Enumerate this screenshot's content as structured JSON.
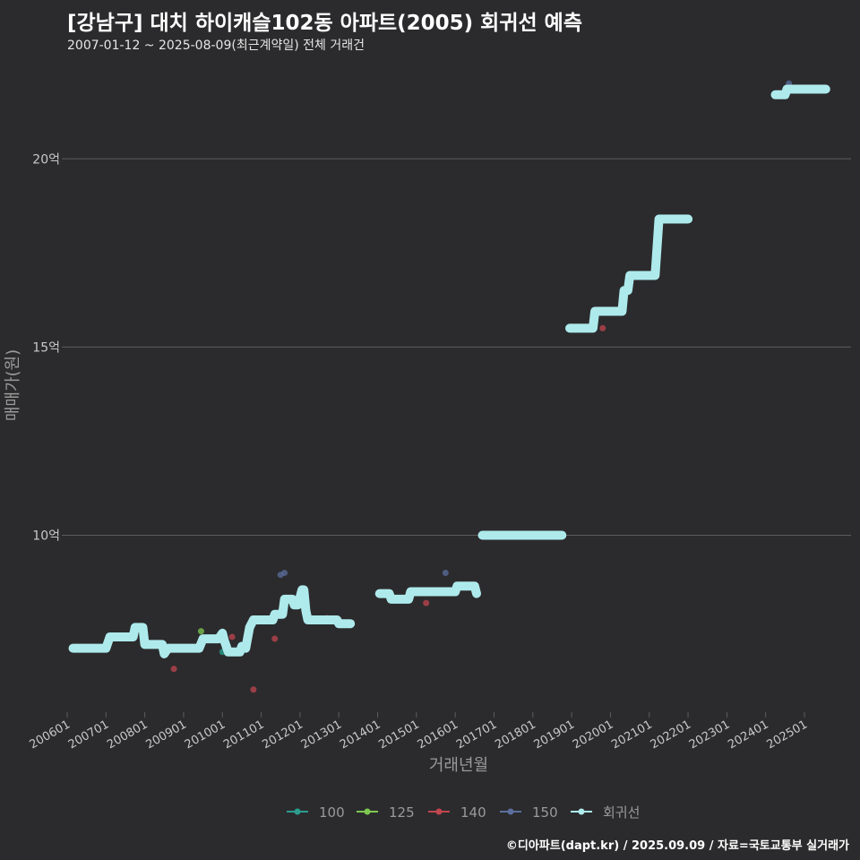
{
  "title": "[강남구] 대치 하이캐슬102동 아파트(2005) 회귀선 예측",
  "subtitle": "2007-01-12 ~ 2025-08-09(최근계약일) 전체 거래건",
  "footer": "©디아파트(dapt.kr) / 2025.09.09 / 자료=국토교통부 실거래가",
  "colors": {
    "background": "#2b2b2d",
    "grid": "#5c5c5f",
    "regression": "#aeeaec",
    "s100": "#2a9d8f",
    "s125": "#7ec850",
    "s140": "#c0464f",
    "s150": "#5b6e9c"
  },
  "chart_data": {
    "type": "scatter",
    "title": "[강남구] 대치 하이캐슬102동 아파트(2005) 회귀선 예측",
    "xlabel": "거래년월",
    "ylabel": "매매가(원)",
    "ylim": [
      5.3,
      22.6
    ],
    "xlim": [
      2006.0,
      2026.2
    ],
    "yticks": [
      {
        "value": 10,
        "label": "10억"
      },
      {
        "value": 15,
        "label": "15억"
      },
      {
        "value": 20,
        "label": "20억"
      }
    ],
    "xticks": [
      "200601",
      "200701",
      "200801",
      "200901",
      "201001",
      "201101",
      "201201",
      "201301",
      "201401",
      "201501",
      "201601",
      "201701",
      "201801",
      "201901",
      "202001",
      "202101",
      "202201",
      "202301",
      "202401",
      "202501"
    ],
    "legend": [
      "100",
      "125",
      "140",
      "150",
      "회귀선"
    ],
    "series": [
      {
        "name": "100",
        "points": [
          [
            2010.0,
            6.9
          ]
        ]
      },
      {
        "name": "125",
        "points": [
          [
            2009.45,
            7.45
          ]
        ]
      },
      {
        "name": "140",
        "points": [
          [
            2008.75,
            6.45
          ],
          [
            2010.25,
            7.3
          ],
          [
            2010.8,
            5.9
          ],
          [
            2011.35,
            7.25
          ],
          [
            2012.7,
            7.8
          ],
          [
            2013.0,
            7.75
          ],
          [
            2015.25,
            8.2
          ],
          [
            2019.8,
            15.5
          ],
          [
            2024.4,
            21.7
          ]
        ]
      },
      {
        "name": "150",
        "points": [
          [
            2011.5,
            8.95
          ],
          [
            2011.6,
            9.0
          ],
          [
            2013.05,
            7.7
          ],
          [
            2015.75,
            9.0
          ],
          [
            2024.6,
            22.0
          ]
        ]
      }
    ],
    "regression": [
      [
        [
          2006.15,
          7.0
        ],
        [
          2007.0,
          7.0
        ],
        [
          2007.1,
          7.3
        ],
        [
          2007.7,
          7.3
        ],
        [
          2007.75,
          7.55
        ],
        [
          2007.95,
          7.55
        ],
        [
          2008.0,
          7.1
        ],
        [
          2008.45,
          7.1
        ],
        [
          2008.5,
          6.85
        ],
        [
          2008.6,
          7.0
        ],
        [
          2009.4,
          7.0
        ],
        [
          2009.5,
          7.25
        ],
        [
          2009.9,
          7.25
        ],
        [
          2010.0,
          7.4
        ],
        [
          2010.05,
          7.2
        ],
        [
          2010.15,
          6.9
        ],
        [
          2010.45,
          6.9
        ],
        [
          2010.5,
          7.05
        ],
        [
          2010.6,
          7.0
        ],
        [
          2010.7,
          7.55
        ],
        [
          2010.8,
          7.75
        ],
        [
          2011.3,
          7.75
        ],
        [
          2011.35,
          7.9
        ],
        [
          2011.55,
          7.9
        ],
        [
          2011.6,
          8.3
        ],
        [
          2011.8,
          8.3
        ],
        [
          2011.85,
          8.15
        ],
        [
          2011.95,
          8.15
        ],
        [
          2012.05,
          8.55
        ],
        [
          2012.1,
          8.55
        ],
        [
          2012.15,
          8.0
        ],
        [
          2012.2,
          7.75
        ],
        [
          2012.95,
          7.75
        ],
        [
          2013.0,
          7.65
        ],
        [
          2013.3,
          7.65
        ]
      ],
      [
        [
          2014.05,
          8.45
        ],
        [
          2014.3,
          8.45
        ],
        [
          2014.35,
          8.3
        ],
        [
          2014.8,
          8.3
        ],
        [
          2014.85,
          8.5
        ],
        [
          2015.6,
          8.5
        ],
        [
          2016.0,
          8.5
        ],
        [
          2016.05,
          8.65
        ],
        [
          2016.5,
          8.65
        ],
        [
          2016.55,
          8.45
        ]
      ],
      [
        [
          2016.7,
          10.0
        ],
        [
          2018.75,
          10.0
        ]
      ],
      [
        [
          2018.95,
          15.5
        ],
        [
          2019.55,
          15.5
        ],
        [
          2019.6,
          15.95
        ],
        [
          2020.3,
          15.95
        ],
        [
          2020.35,
          16.5
        ],
        [
          2020.45,
          16.5
        ],
        [
          2020.5,
          16.9
        ],
        [
          2021.15,
          16.9
        ],
        [
          2021.25,
          18.4
        ],
        [
          2022.0,
          18.4
        ]
      ],
      [
        [
          2024.25,
          21.7
        ],
        [
          2024.5,
          21.7
        ],
        [
          2024.55,
          21.85
        ],
        [
          2025.55,
          21.85
        ]
      ]
    ]
  }
}
